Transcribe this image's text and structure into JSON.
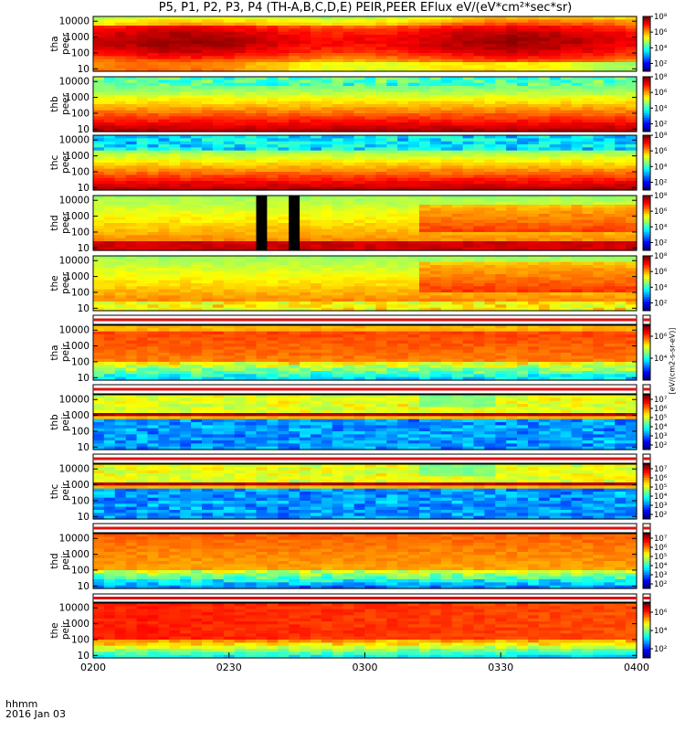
{
  "title": "P5, P1, P2, P3, P4 (TH-A,B,C,D,E) PEIR,PEER EFlux eV/(eV*cm²*sec*sr)",
  "footer": {
    "axis_label": "hhmm",
    "date": "2016 Jan 03"
  },
  "colorbar_unit": "[eV/(cm2-s-sr-eV)]",
  "colors": {
    "frame": "#000000",
    "gap_red": "#e01010"
  },
  "chart_data": [
    {
      "type": "heatmap",
      "x_ticks": [
        "0200",
        "0230",
        "0300",
        "0330",
        "0400"
      ],
      "x_range": [
        "0200",
        "0400"
      ],
      "panels": [
        {
          "label_top": "tha",
          "label_bot": "peer",
          "y_ticks": [
            "10",
            "100",
            "1000",
            "10000"
          ],
          "ylog": true,
          "cb_ticks": [
            "10²",
            "10⁴",
            "10⁶",
            "10⁸"
          ],
          "cb_range": [
            1,
            8
          ],
          "style": "peer_high"
        },
        {
          "label_top": "thb",
          "label_bot": "peer",
          "y_ticks": [
            "10",
            "100",
            "1000",
            "10000"
          ],
          "ylog": true,
          "cb_ticks": [
            "10²",
            "10⁴",
            "10⁶",
            "10⁸"
          ],
          "cb_range": [
            1,
            8
          ],
          "style": "peer_wide"
        },
        {
          "label_top": "thc",
          "label_bot": "peer",
          "y_ticks": [
            "10",
            "100",
            "1000",
            "10000"
          ],
          "ylog": true,
          "cb_ticks": [
            "10²",
            "10⁴",
            "10⁶",
            "10⁸"
          ],
          "cb_range": [
            1,
            8
          ],
          "style": "peer_noisy_top"
        },
        {
          "label_top": "thd",
          "label_bot": "peer",
          "y_ticks": [
            "10",
            "100",
            "1000",
            "10000"
          ],
          "ylog": true,
          "cb_ticks": [
            "10²",
            "10⁴",
            "10⁶",
            "10⁸"
          ],
          "cb_range": [
            1,
            8
          ],
          "style": "peer_gaps"
        },
        {
          "label_top": "the",
          "label_bot": "peer",
          "y_ticks": [
            "10",
            "100",
            "1000",
            "10000"
          ],
          "ylog": true,
          "cb_ticks": [
            "10²",
            "10⁴",
            "10⁶",
            "10⁸"
          ],
          "cb_range": [
            1,
            8
          ],
          "style": "peer_rise"
        },
        {
          "label_top": "tha",
          "label_bot": "peir",
          "y_ticks": [
            "10",
            "100",
            "1000",
            "10000"
          ],
          "ylog": true,
          "cb_ticks": [
            "10⁴",
            "10⁶"
          ],
          "cb_range": [
            2,
            7
          ],
          "style": "peir_a"
        },
        {
          "label_top": "thb",
          "label_bot": "peir",
          "y_ticks": [
            "10",
            "100",
            "1000",
            "10000"
          ],
          "ylog": true,
          "cb_ticks": [
            "10²",
            "10³",
            "10⁴",
            "10⁵",
            "10⁶",
            "10⁷"
          ],
          "cb_range": [
            1.5,
            7.5
          ],
          "style": "peir_band"
        },
        {
          "label_top": "thc",
          "label_bot": "peir",
          "y_ticks": [
            "10",
            "100",
            "1000",
            "10000"
          ],
          "ylog": true,
          "cb_ticks": [
            "10²",
            "10³",
            "10⁴",
            "10⁵",
            "10⁶",
            "10⁷"
          ],
          "cb_range": [
            1.5,
            7.5
          ],
          "style": "peir_band"
        },
        {
          "label_top": "thd",
          "label_bot": "peir",
          "y_ticks": [
            "10",
            "100",
            "1000",
            "10000"
          ],
          "ylog": true,
          "cb_ticks": [
            "10²",
            "10³",
            "10⁴",
            "10⁵",
            "10⁶",
            "10⁷"
          ],
          "cb_range": [
            1.5,
            7.5
          ],
          "style": "peir_d"
        },
        {
          "label_top": "the",
          "label_bot": "peir",
          "y_ticks": [
            "10",
            "100",
            "1000",
            "10000"
          ],
          "ylog": true,
          "cb_ticks": [
            "10²",
            "10⁴",
            "10⁶"
          ],
          "cb_range": [
            1,
            7
          ],
          "style": "peir_e"
        }
      ]
    }
  ]
}
